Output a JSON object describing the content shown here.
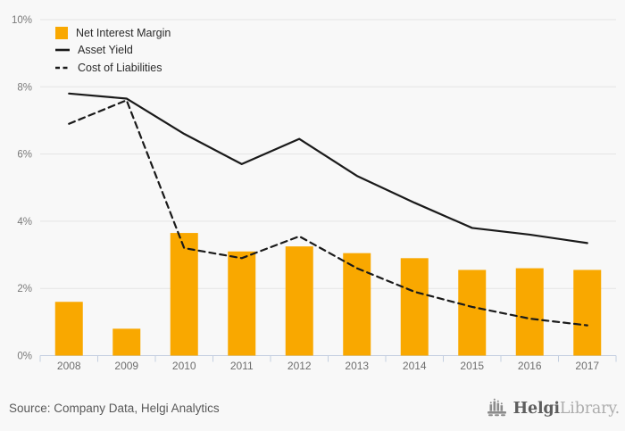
{
  "chart_data": {
    "type": "bar",
    "combo": "bar+line",
    "categories": [
      "2008",
      "2009",
      "2010",
      "2011",
      "2012",
      "2013",
      "2014",
      "2015",
      "2016",
      "2017"
    ],
    "series": [
      {
        "name": "Net Interest Margin",
        "type": "bar",
        "color": "#F9A800",
        "values": [
          1.6,
          0.8,
          3.65,
          3.1,
          3.25,
          3.05,
          2.9,
          2.55,
          2.6,
          2.55
        ]
      },
      {
        "name": "Asset Yield",
        "type": "line",
        "line_style": "solid",
        "color": "#1a1a1a",
        "values": [
          7.8,
          7.65,
          6.6,
          5.7,
          6.45,
          5.35,
          4.55,
          3.8,
          3.6,
          3.35
        ]
      },
      {
        "name": "Cost of Liabilities",
        "type": "line",
        "line_style": "dashed",
        "color": "#1a1a1a",
        "values": [
          6.9,
          7.6,
          3.2,
          2.9,
          3.55,
          2.6,
          1.9,
          1.45,
          1.1,
          0.9
        ]
      }
    ],
    "title": "",
    "xlabel": "",
    "ylabel": "",
    "unit": "%",
    "ylim": [
      0,
      10
    ],
    "ytick_step": 2,
    "ytick_labels": [
      "0%",
      "2%",
      "4%",
      "6%",
      "8%",
      "10%"
    ],
    "grid": true,
    "legend_position": "top-left"
  },
  "colors": {
    "background": "#f8f8f8",
    "bar": "#F9A800",
    "line": "#1a1a1a",
    "grid": "#e4e4e4",
    "axis": "#c4cfe0",
    "ytick_text": "#7a7a7a",
    "xtick_text": "#6e6e6e"
  },
  "footer": {
    "source": "Source: Company Data, Helgi Analytics",
    "logo": {
      "brand": "Helgi",
      "suffix": "Library."
    }
  }
}
